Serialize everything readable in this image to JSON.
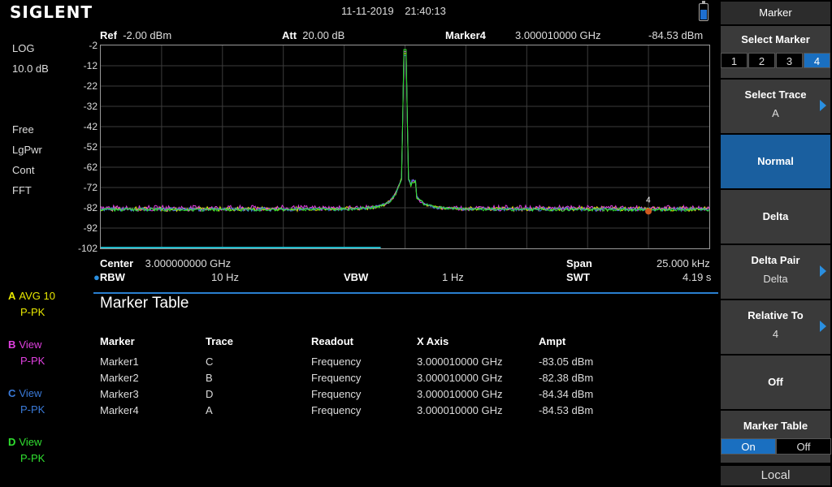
{
  "brand": "SIGLENT",
  "date": "11-11-2019",
  "time": "21:40:13",
  "left": {
    "scale_type": "LOG",
    "scale_div": "10.0 dB",
    "free": "Free",
    "detector": "LgPwr",
    "sweep": "Cont",
    "fft": "FFT"
  },
  "traces": [
    {
      "letter": "A",
      "state": "AVG 10",
      "mode": "P-PK",
      "color": "#e8e800"
    },
    {
      "letter": "B",
      "state": "View",
      "mode": "P-PK",
      "color": "#e040e0"
    },
    {
      "letter": "C",
      "state": "View",
      "mode": "P-PK",
      "color": "#3a7ad8"
    },
    {
      "letter": "D",
      "state": "View",
      "mode": "P-PK",
      "color": "#30e030"
    }
  ],
  "header": {
    "ref_label": "Ref",
    "ref_value": "-2.00 dBm",
    "att_label": "Att",
    "att_value": "20.00 dB",
    "marker_label": "Marker4",
    "marker_freq": "3.000010000 GHz",
    "marker_ampt": "-84.53 dBm"
  },
  "bottom": {
    "center_label": "Center",
    "center_value": "3.000000000 GHz",
    "span_label": "Span",
    "span_value": "25.000 kHz",
    "rbw_label": "RBW",
    "rbw_value": "10 Hz",
    "vbw_label": "VBW",
    "vbw_value": "1 Hz",
    "swt_label": "SWT",
    "swt_value": "4.19 s"
  },
  "marker_table": {
    "title": "Marker Table",
    "headers": [
      "Marker",
      "Trace",
      "Readout",
      "X Axis",
      "Ampt"
    ],
    "rows": [
      [
        "Marker1",
        "C",
        "Frequency",
        "3.000010000 GHz",
        "-83.05 dBm"
      ],
      [
        "Marker2",
        "B",
        "Frequency",
        "3.000010000 GHz",
        "-82.38 dBm"
      ],
      [
        "Marker3",
        "D",
        "Frequency",
        "3.000010000 GHz",
        "-84.34 dBm"
      ],
      [
        "Marker4",
        "A",
        "Frequency",
        "3.000010000 GHz",
        "-84.53 dBm"
      ]
    ]
  },
  "panel": {
    "title": "Marker",
    "select_marker": "Select Marker",
    "marker_buttons": [
      "1",
      "2",
      "3",
      "4"
    ],
    "selected_marker": "4",
    "select_trace": "Select Trace",
    "select_trace_value": "A",
    "normal": "Normal",
    "delta": "Delta",
    "delta_pair": "Delta Pair",
    "delta_pair_value": "Delta",
    "relative_to": "Relative To",
    "relative_to_value": "4",
    "off": "Off",
    "marker_table": "Marker Table",
    "on_label": "On",
    "off_label": "Off",
    "local": "Local"
  },
  "chart_data": {
    "type": "line",
    "yticks": [
      -2,
      -12,
      -22,
      -32,
      -42,
      -52,
      -62,
      -72,
      -82,
      -92,
      -102
    ],
    "ylim": [
      -102,
      -2
    ],
    "x_center_ghz": 3.0,
    "span_khz": 25.0,
    "noise_floor_dbm": -83,
    "peak": {
      "x_offset_khz": 0.0,
      "y_dbm": -4
    },
    "series": [
      {
        "color": "#e8e800"
      },
      {
        "color": "#e040e0"
      },
      {
        "color": "#3a7ad8"
      },
      {
        "color": "#30e030"
      }
    ],
    "marker": {
      "label": "4",
      "x_offset_khz": 10.0,
      "y_dbm": -84.53
    }
  }
}
